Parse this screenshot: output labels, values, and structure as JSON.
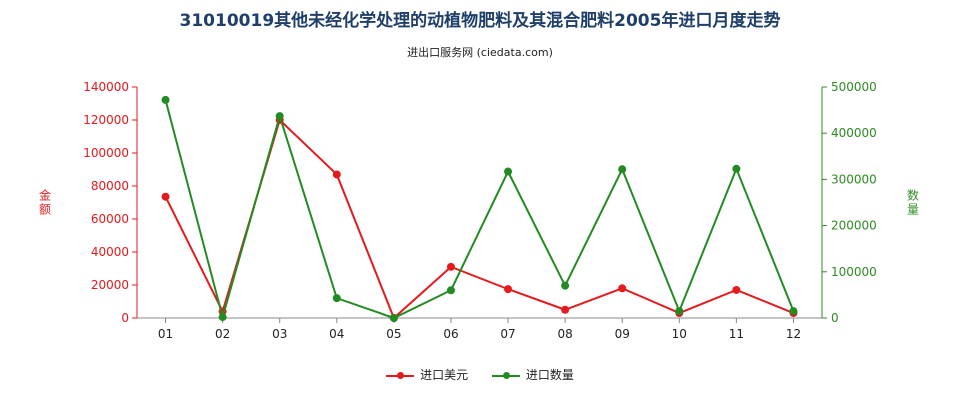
{
  "chart_data": {
    "type": "line",
    "title": "31010019其他未经化学处理的动植物肥料及其混合肥料2005年进口月度走势",
    "subtitle": "进出口服务网 (ciedata.com)",
    "categories": [
      "01",
      "02",
      "03",
      "04",
      "05",
      "06",
      "07",
      "08",
      "09",
      "10",
      "11",
      "12"
    ],
    "y_left": {
      "label": "金额",
      "ylim": [
        0,
        140000
      ],
      "ticks": [
        "0",
        "20000",
        "40000",
        "60000",
        "80000",
        "100000",
        "120000",
        "140000"
      ],
      "color": "#e41a1c"
    },
    "y_right": {
      "label": "数量",
      "ylim": [
        0,
        500000
      ],
      "ticks": [
        "0",
        "100000",
        "200000",
        "300000",
        "400000",
        "500000"
      ],
      "color": "#2e8b22"
    },
    "series": [
      {
        "name": "进口美元",
        "axis": "left",
        "color": "#e41a1c",
        "values": [
          73500,
          4000,
          120000,
          87000,
          0,
          31000,
          17500,
          5000,
          18000,
          3000,
          17000,
          3000
        ]
      },
      {
        "name": "进口数量",
        "axis": "right",
        "color": "#228b22",
        "values": [
          472000,
          2000,
          437000,
          43000,
          0,
          60000,
          317000,
          70000,
          322000,
          15000,
          323000,
          15000
        ]
      }
    ],
    "legend_position": "bottom",
    "grid": false
  }
}
